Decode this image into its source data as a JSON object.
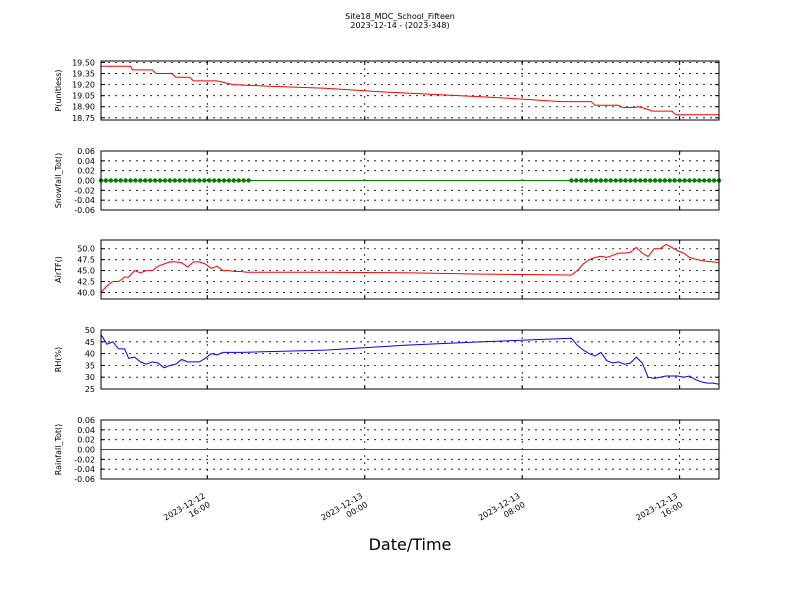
{
  "chart_data": {
    "type": "line",
    "title": "Site18_MDC_School_Fifteen",
    "subtitle": "2023-12-14 - (2023-348)",
    "xlabel": "Date/Time",
    "x_ticks": [
      {
        "line1": "2023-12-12",
        "line2": "16:00",
        "hour": 16
      },
      {
        "line1": "2023-12-13",
        "line2": "00:00",
        "hour": 24
      },
      {
        "line1": "2023-12-13",
        "line2": "08:00",
        "hour": 32
      },
      {
        "line1": "2023-12-13",
        "line2": "16:00",
        "hour": 40
      }
    ],
    "x_range_hours": [
      10.6,
      42.0
    ],
    "panels": [
      {
        "ylabel": "P(unitless)",
        "color": "#ff0000",
        "ylim": [
          18.72,
          19.52
        ],
        "yticks": [
          "19.50",
          "19.35",
          "19.20",
          "19.05",
          "18.90",
          "18.75"
        ],
        "ytick_values": [
          19.5,
          19.35,
          19.2,
          19.05,
          18.9,
          18.75
        ],
        "x": [
          10.6,
          12.1,
          12.2,
          13.2,
          13.4,
          14.2,
          14.4,
          15.1,
          15.3,
          16.0,
          16.2,
          16.5,
          17.3,
          19.0,
          22.0,
          25.0,
          28.0,
          31.0,
          34.0,
          35.5,
          35.7,
          36.9,
          37.1,
          37.7,
          37.9,
          38.3,
          38.6,
          39.6,
          39.8,
          41.0,
          42.0
        ],
        "y": [
          19.45,
          19.45,
          19.4,
          19.4,
          19.35,
          19.35,
          19.3,
          19.3,
          19.25,
          19.25,
          19.25,
          19.25,
          19.2,
          19.18,
          19.15,
          19.1,
          19.06,
          19.02,
          18.97,
          18.97,
          18.92,
          18.92,
          18.89,
          18.89,
          18.9,
          18.87,
          18.84,
          18.84,
          18.79,
          18.79,
          18.79
        ]
      },
      {
        "ylabel": "Snowfall_Tot()",
        "color": "#008000",
        "ylim": [
          -0.06,
          0.06
        ],
        "yticks": [
          "0.06",
          "0.04",
          "0.02",
          "0.00",
          "-0.02",
          "-0.04",
          "-0.06"
        ],
        "ytick_values": [
          0.06,
          0.04,
          0.02,
          0.0,
          -0.02,
          -0.04,
          -0.06
        ],
        "line_x": [
          10.6,
          42.0
        ],
        "line_y": [
          0,
          0
        ],
        "marker_x_ranges": [
          [
            10.6,
            18.1
          ],
          [
            34.5,
            42.0
          ]
        ],
        "marker_step_hours": 0.25,
        "marker_y": 0
      },
      {
        "ylabel": "AirTF()",
        "color": "#ff0000",
        "ylim": [
          38.5,
          52.0
        ],
        "yticks": [
          "50.0",
          "47.5",
          "45.0",
          "42.5",
          "40.0"
        ],
        "ytick_values": [
          50.0,
          47.5,
          45.0,
          42.5,
          40.0
        ],
        "x": [
          10.6,
          10.9,
          11.2,
          11.5,
          11.8,
          12.0,
          12.3,
          12.6,
          12.9,
          13.2,
          13.5,
          13.8,
          14.1,
          14.4,
          14.7,
          15.0,
          15.3,
          15.6,
          15.9,
          16.2,
          16.5,
          16.8,
          17.1,
          17.4,
          17.7,
          18.0,
          22.0,
          26.0,
          30.0,
          34.5,
          34.8,
          35.1,
          35.4,
          35.7,
          36.0,
          36.3,
          36.6,
          36.9,
          37.2,
          37.5,
          37.8,
          38.1,
          38.4,
          38.7,
          39.0,
          39.3,
          39.6,
          39.9,
          40.2,
          40.5,
          40.8,
          41.1,
          41.4,
          41.7,
          42.0
        ],
        "y": [
          40.0,
          41.5,
          42.5,
          42.5,
          43.5,
          43.5,
          45.0,
          44.5,
          45.0,
          45.0,
          46.0,
          46.5,
          47.0,
          47.0,
          46.8,
          45.8,
          47.0,
          47.0,
          46.5,
          45.5,
          46.0,
          45.0,
          45.0,
          44.8,
          44.8,
          44.6,
          44.6,
          44.5,
          44.2,
          44.0,
          45.0,
          46.5,
          47.5,
          48.0,
          48.3,
          48.0,
          48.5,
          49.0,
          49.0,
          49.2,
          50.3,
          49.0,
          48.2,
          50.0,
          50.0,
          51.0,
          50.3,
          49.5,
          49.0,
          48.0,
          47.6,
          47.3,
          47.1,
          47.0,
          46.8
        ]
      },
      {
        "ylabel": "RH(%)",
        "color": "#0000ff",
        "ylim": [
          25,
          50
        ],
        "yticks": [
          "50",
          "45",
          "40",
          "35",
          "30",
          "25"
        ],
        "ytick_values": [
          50,
          45,
          40,
          35,
          30,
          25
        ],
        "x": [
          10.6,
          10.9,
          11.2,
          11.5,
          11.8,
          12.0,
          12.3,
          12.6,
          12.9,
          13.2,
          13.5,
          13.8,
          14.1,
          14.4,
          14.7,
          15.0,
          15.3,
          15.6,
          15.9,
          16.2,
          16.5,
          16.8,
          17.1,
          17.4,
          17.7,
          18.0,
          22.0,
          26.0,
          30.0,
          34.5,
          34.8,
          35.1,
          35.4,
          35.7,
          36.0,
          36.3,
          36.6,
          36.9,
          37.2,
          37.5,
          37.8,
          38.1,
          38.4,
          38.7,
          39.0,
          39.3,
          39.6,
          39.9,
          40.2,
          40.5,
          40.8,
          41.1,
          41.4,
          41.7,
          42.0
        ],
        "y": [
          48.0,
          44.0,
          45.0,
          42.0,
          42.0,
          38.0,
          38.5,
          36.5,
          35.5,
          36.5,
          36.0,
          34.0,
          35.0,
          35.5,
          37.5,
          36.5,
          36.5,
          36.5,
          38.0,
          40.0,
          39.5,
          40.5,
          40.5,
          40.5,
          40.5,
          40.6,
          41.5,
          43.5,
          45.0,
          46.5,
          43.5,
          41.5,
          40.0,
          39.0,
          40.5,
          37.0,
          36.0,
          36.5,
          35.5,
          36.0,
          38.5,
          36.0,
          30.0,
          29.5,
          30.0,
          30.5,
          30.5,
          30.5,
          30.0,
          30.5,
          29.0,
          28.0,
          27.5,
          27.5,
          27.0
        ]
      },
      {
        "ylabel": "Rainfall_Tot()",
        "color": "#ff0000",
        "ylim": [
          -0.06,
          0.06
        ],
        "yticks": [
          "0.06",
          "0.04",
          "0.02",
          "0.00",
          "-0.02",
          "-0.04",
          "-0.06"
        ],
        "ytick_values": [
          0.06,
          0.04,
          0.02,
          0.0,
          -0.02,
          -0.04,
          -0.06
        ],
        "x": [
          10.6,
          42.0
        ],
        "y": [
          0,
          0
        ]
      }
    ]
  }
}
